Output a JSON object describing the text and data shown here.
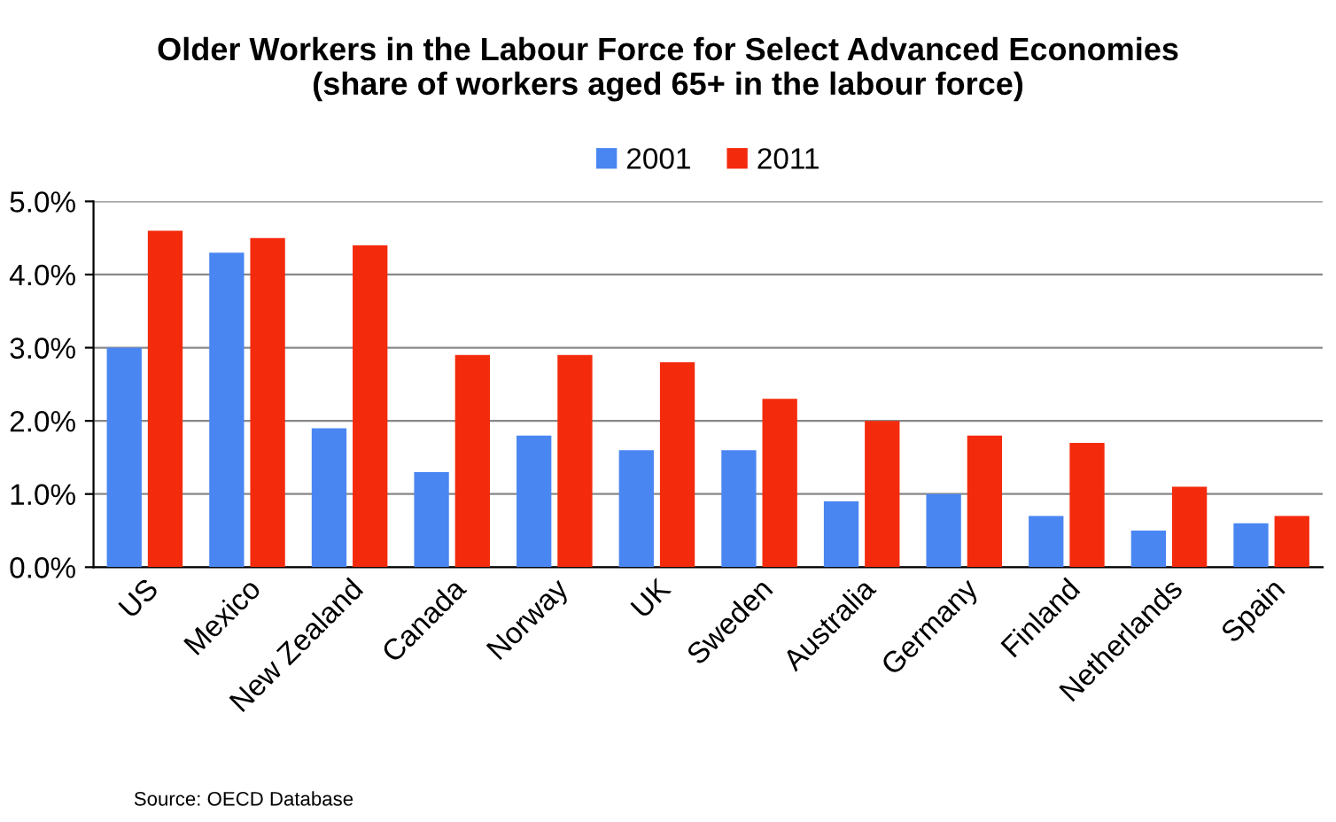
{
  "chart_data": {
    "type": "bar",
    "title": "Older Workers in the Labour Force for Select Advanced Economies\n(share of workers aged 65+ in the labour force)",
    "categories": [
      "US",
      "Mexico",
      "New Zealand",
      "Canada",
      "Norway",
      "UK",
      "Sweden",
      "Australia",
      "Germany",
      "Finland",
      "Netherlands",
      "Spain"
    ],
    "series": [
      {
        "name": "2001",
        "color": "#4a86f2",
        "values": [
          3.0,
          4.3,
          1.9,
          1.3,
          1.8,
          1.6,
          1.6,
          0.9,
          1.0,
          0.7,
          0.5,
          0.6
        ]
      },
      {
        "name": "2011",
        "color": "#f42a0c",
        "values": [
          4.6,
          4.5,
          4.4,
          2.9,
          2.9,
          2.8,
          2.3,
          2.0,
          1.8,
          1.7,
          1.1,
          0.7
        ]
      }
    ],
    "ylim": [
      0,
      5
    ],
    "yticks": [
      {
        "value": 0,
        "label": "0.0%"
      },
      {
        "value": 1,
        "label": "1.0%"
      },
      {
        "value": 2,
        "label": "2.0%"
      },
      {
        "value": 3,
        "label": "3.0%"
      },
      {
        "value": 4,
        "label": "4.0%"
      },
      {
        "value": 5,
        "label": "5.0%"
      }
    ],
    "grid": "y",
    "legend": "top",
    "annotations": [
      "Source: OECD Database"
    ]
  }
}
